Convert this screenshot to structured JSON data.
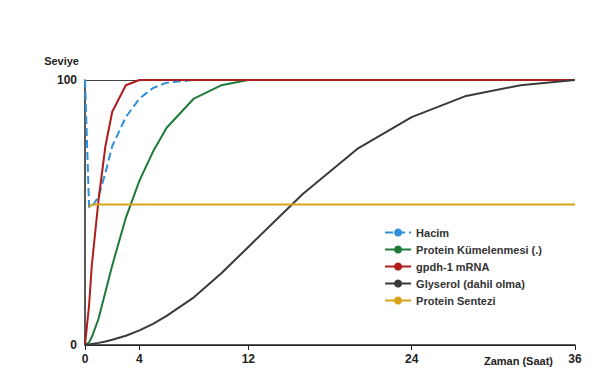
{
  "chart_data": {
    "type": "line",
    "x_label": "Zaman (Saat)",
    "y_label": "Seviye",
    "x": [
      0,
      0.3,
      0.5,
      1,
      1.5,
      2,
      3,
      4,
      5,
      6,
      8,
      10,
      12,
      16,
      20,
      24,
      28,
      32,
      36
    ],
    "series": [
      {
        "name": "Hacim",
        "color": "#2f8fd8",
        "line_style": "dashed",
        "marker": "none",
        "values": [
          100,
          52,
          52,
          56,
          65,
          75,
          86,
          93,
          97,
          99,
          100,
          100,
          100,
          100,
          100,
          100,
          100,
          100,
          100
        ]
      },
      {
        "name": "Protein Kümelenmesi (.)",
        "color": "#1f7a3a",
        "line_style": "solid",
        "marker": "none",
        "values": [
          0,
          1,
          3,
          10,
          20,
          30,
          48,
          62,
          73,
          82,
          93,
          98,
          100,
          100,
          100,
          100,
          100,
          100,
          100
        ]
      },
      {
        "name": "gpdh-1 mRNA",
        "color": "#b01c1c",
        "line_style": "solid",
        "marker": "none",
        "values": [
          0,
          15,
          30,
          55,
          75,
          88,
          98,
          100,
          100,
          100,
          100,
          100,
          100,
          100,
          100,
          100,
          100,
          100,
          100
        ]
      },
      {
        "name": "Glyserol (dahil olma)",
        "color": "#3a3a3a",
        "line_style": "solid",
        "marker": "none",
        "values": [
          0,
          0.2,
          0.4,
          0.8,
          1.3,
          2,
          3.5,
          5.5,
          8,
          11,
          18,
          27,
          37,
          57,
          74,
          86,
          94,
          98,
          100
        ]
      },
      {
        "name": "Protein Sentezi",
        "color": "#d9a21b",
        "line_style": "solid",
        "marker": "none",
        "values": [
          null,
          52,
          53,
          53,
          53,
          53,
          53,
          53,
          53,
          53,
          53,
          53,
          53,
          53,
          53,
          53,
          53,
          53,
          53
        ]
      }
    ],
    "xlim": [
      0,
      36
    ],
    "xticks": [
      0,
      4,
      12,
      24,
      36
    ],
    "ylim": [
      0,
      100
    ],
    "yticks": [
      0,
      100
    ],
    "grid": true,
    "legend": "right"
  }
}
